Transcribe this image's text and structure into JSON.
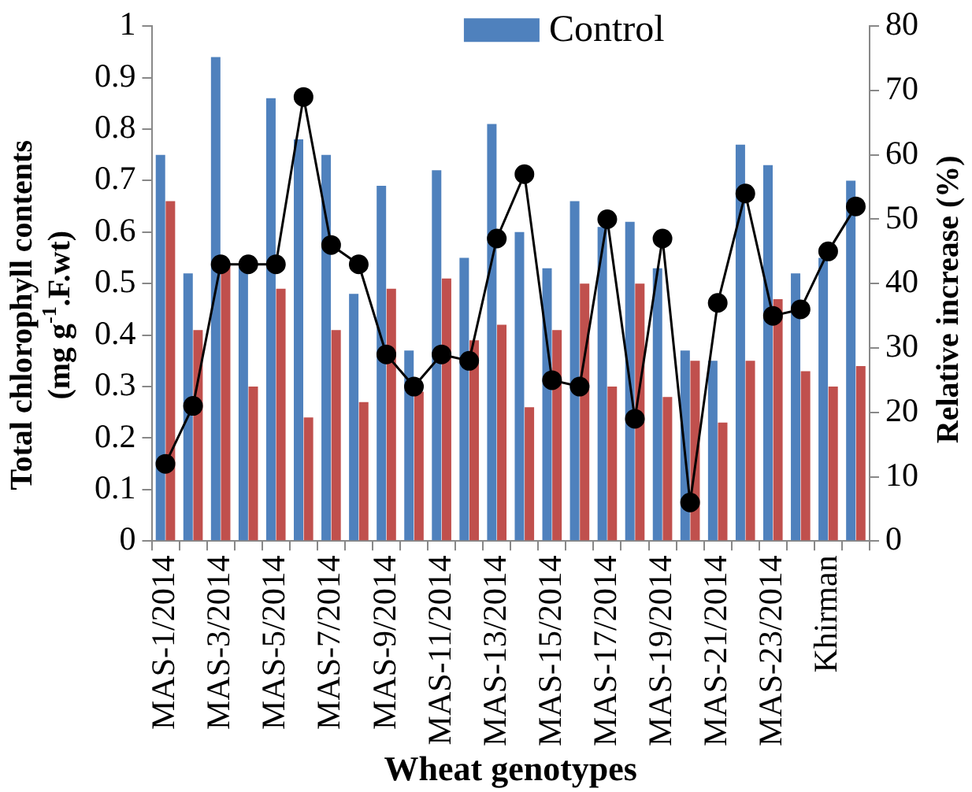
{
  "chart_data": {
    "type": "bar",
    "xlabel": "Wheat genotypes",
    "ylabel": "Total chlorophyll contents (mg g$^{-1}$.F.wt)",
    "y2label": "Relative increase (%)",
    "categories": [
      "MAS-1/2014",
      null,
      "MAS-3/2014",
      null,
      "MAS-5/2014",
      null,
      "MAS-7/2014",
      null,
      "MAS-9/2014",
      null,
      "MAS-11/2014",
      null,
      "MAS-13/2014",
      null,
      "MAS-15/2014",
      null,
      "MAS-17/2014",
      null,
      "MAS-19/2014",
      null,
      "MAS-21/2014",
      null,
      "MAS-23/2014",
      null,
      "Khirman",
      null
    ],
    "series": [
      {
        "name": "Control",
        "color": "#4f81bd",
        "values": [
          0.75,
          0.52,
          0.94,
          0.54,
          0.86,
          0.78,
          0.75,
          0.48,
          0.69,
          0.37,
          0.72,
          0.55,
          0.81,
          0.6,
          0.53,
          0.66,
          0.61,
          0.62,
          0.53,
          0.37,
          0.35,
          0.77,
          0.73,
          0.52,
          0.55,
          0.7
        ]
      },
      {
        "color": "#c0504d",
        "values": [
          0.66,
          0.41,
          0.54,
          0.3,
          0.49,
          0.24,
          0.41,
          0.27,
          0.49,
          0.29,
          0.51,
          0.39,
          0.42,
          0.26,
          0.41,
          0.5,
          0.3,
          0.5,
          0.28,
          0.35,
          0.23,
          0.35,
          0.47,
          0.33,
          0.3,
          0.34
        ]
      },
      {
        "type": "line",
        "axis": "y2",
        "color": "#000000",
        "marker": "circle",
        "values": [
          12,
          21,
          43,
          43,
          43,
          69,
          46,
          43,
          29,
          24,
          29,
          28,
          47,
          57,
          25,
          24,
          50,
          19,
          47,
          6,
          37,
          54,
          35,
          36,
          45,
          52
        ]
      }
    ],
    "ylim": [
      0,
      1
    ],
    "yticks": [
      0,
      0.1,
      0.2,
      0.3,
      0.4,
      0.5,
      0.6,
      0.7,
      0.8,
      0.9,
      1
    ],
    "y2lim": [
      0,
      80
    ],
    "y2ticks": [
      0,
      10,
      20,
      30,
      40,
      50,
      60,
      70,
      80
    ],
    "grid": false,
    "legend": "top"
  }
}
